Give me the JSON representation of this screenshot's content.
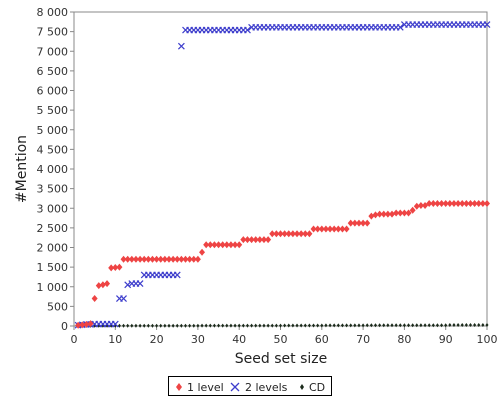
{
  "chart_data": {
    "type": "scatter",
    "xlabel": "Seed set size",
    "ylabel": "#Mention",
    "xlim": [
      0,
      100
    ],
    "ylim": [
      0,
      8000
    ],
    "x_ticks": [
      0,
      10,
      20,
      30,
      40,
      50,
      60,
      70,
      80,
      90,
      100
    ],
    "y_ticks": [
      0,
      500,
      1000,
      1500,
      2000,
      2500,
      3000,
      3500,
      4000,
      4500,
      5000,
      5500,
      6000,
      6500,
      7000,
      7500,
      8000
    ],
    "x_tick_labels": [
      "0",
      "10",
      "20",
      "30",
      "40",
      "50",
      "60",
      "70",
      "80",
      "90",
      "100"
    ],
    "y_tick_labels": [
      "0",
      "500",
      "1 000",
      "1 500",
      "2 000",
      "2 500",
      "3 000",
      "3 500",
      "4 000",
      "4 500",
      "5 000",
      "5 500",
      "6 000",
      "6 500",
      "7 000",
      "7 500",
      "8 000"
    ],
    "grid": false,
    "legend_position": "bottom",
    "series": [
      {
        "name": "1 level",
        "marker": "diamond",
        "color": "#ee4444",
        "x": [
          1,
          2,
          3,
          4,
          5,
          6,
          7,
          8,
          9,
          10,
          11,
          12,
          13,
          14,
          15,
          16,
          17,
          18,
          19,
          20,
          21,
          22,
          23,
          24,
          25,
          26,
          27,
          28,
          29,
          30,
          31,
          32,
          33,
          34,
          35,
          36,
          37,
          38,
          39,
          40,
          41,
          42,
          43,
          44,
          45,
          46,
          47,
          48,
          49,
          50,
          51,
          52,
          53,
          54,
          55,
          56,
          57,
          58,
          59,
          60,
          61,
          62,
          63,
          64,
          65,
          66,
          67,
          68,
          69,
          70,
          71,
          72,
          73,
          74,
          75,
          76,
          77,
          78,
          79,
          80,
          81,
          82,
          83,
          84,
          85,
          86,
          87,
          88,
          89,
          90,
          91,
          92,
          93,
          94,
          95,
          96,
          97,
          98,
          99,
          100
        ],
        "y": [
          20,
          30,
          40,
          60,
          700,
          1030,
          1050,
          1080,
          1480,
          1490,
          1500,
          1700,
          1700,
          1700,
          1700,
          1700,
          1700,
          1700,
          1700,
          1700,
          1700,
          1700,
          1700,
          1700,
          1700,
          1700,
          1700,
          1700,
          1700,
          1700,
          1880,
          2070,
          2070,
          2070,
          2070,
          2070,
          2070,
          2070,
          2070,
          2070,
          2200,
          2200,
          2200,
          2200,
          2200,
          2200,
          2200,
          2350,
          2350,
          2350,
          2350,
          2350,
          2350,
          2350,
          2350,
          2350,
          2350,
          2470,
          2470,
          2470,
          2470,
          2470,
          2470,
          2470,
          2470,
          2470,
          2620,
          2620,
          2620,
          2620,
          2620,
          2800,
          2830,
          2850,
          2850,
          2850,
          2850,
          2880,
          2880,
          2880,
          2880,
          2950,
          3050,
          3070,
          3070,
          3120,
          3120,
          3120,
          3120,
          3120,
          3120,
          3120,
          3120,
          3120,
          3120,
          3120,
          3120,
          3120,
          3120,
          3120
        ]
      },
      {
        "name": "2 levels",
        "marker": "x",
        "color": "#3d3dcc",
        "x": [
          1,
          2,
          3,
          4,
          5,
          6,
          7,
          8,
          9,
          10,
          11,
          12,
          13,
          14,
          15,
          16,
          17,
          18,
          19,
          20,
          21,
          22,
          23,
          24,
          25,
          26,
          27,
          28,
          29,
          30,
          31,
          32,
          33,
          34,
          35,
          36,
          37,
          38,
          39,
          40,
          41,
          42,
          43,
          44,
          45,
          46,
          47,
          48,
          49,
          50,
          51,
          52,
          53,
          54,
          55,
          56,
          57,
          58,
          59,
          60,
          61,
          62,
          63,
          64,
          65,
          66,
          67,
          68,
          69,
          70,
          71,
          72,
          73,
          74,
          75,
          76,
          77,
          78,
          79,
          80,
          81,
          82,
          83,
          84,
          85,
          86,
          87,
          88,
          89,
          90,
          91,
          92,
          93,
          94,
          95,
          96,
          97,
          98,
          99,
          100
        ],
        "y": [
          20,
          30,
          40,
          40,
          50,
          50,
          50,
          50,
          50,
          50,
          700,
          700,
          1050,
          1080,
          1080,
          1080,
          1300,
          1300,
          1300,
          1300,
          1300,
          1300,
          1300,
          1300,
          1300,
          7130,
          7540,
          7540,
          7540,
          7540,
          7540,
          7540,
          7540,
          7540,
          7540,
          7540,
          7540,
          7540,
          7540,
          7540,
          7540,
          7540,
          7610,
          7610,
          7610,
          7610,
          7610,
          7610,
          7610,
          7610,
          7610,
          7610,
          7610,
          7610,
          7610,
          7610,
          7610,
          7610,
          7610,
          7610,
          7610,
          7610,
          7610,
          7610,
          7610,
          7610,
          7610,
          7610,
          7610,
          7610,
          7610,
          7610,
          7610,
          7610,
          7610,
          7610,
          7610,
          7610,
          7610,
          7680,
          7680,
          7680,
          7680,
          7680,
          7680,
          7680,
          7680,
          7680,
          7680,
          7680,
          7680,
          7680,
          7680,
          7680,
          7680,
          7680,
          7680,
          7680,
          7680,
          7680
        ]
      },
      {
        "name": "CD",
        "marker": "dot",
        "color": "#1a2a1a",
        "x": [
          1,
          2,
          3,
          4,
          5,
          6,
          7,
          8,
          9,
          10,
          11,
          12,
          13,
          14,
          15,
          16,
          17,
          18,
          19,
          20,
          21,
          22,
          23,
          24,
          25,
          26,
          27,
          28,
          29,
          30,
          31,
          32,
          33,
          34,
          35,
          36,
          37,
          38,
          39,
          40,
          41,
          42,
          43,
          44,
          45,
          46,
          47,
          48,
          49,
          50,
          51,
          52,
          53,
          54,
          55,
          56,
          57,
          58,
          59,
          60,
          61,
          62,
          63,
          64,
          65,
          66,
          67,
          68,
          69,
          70,
          71,
          72,
          73,
          74,
          75,
          76,
          77,
          78,
          79,
          80,
          81,
          82,
          83,
          84,
          85,
          86,
          87,
          88,
          89,
          90,
          91,
          92,
          93,
          94,
          95,
          96,
          97,
          98,
          99,
          100
        ],
        "y": [
          5,
          5,
          5,
          5,
          5,
          5,
          5,
          5,
          5,
          5,
          5,
          5,
          5,
          5,
          5,
          5,
          5,
          5,
          5,
          5,
          5,
          5,
          5,
          5,
          5,
          5,
          5,
          5,
          5,
          5,
          8,
          8,
          8,
          8,
          8,
          8,
          8,
          8,
          8,
          8,
          10,
          10,
          10,
          10,
          10,
          10,
          10,
          10,
          10,
          10,
          12,
          12,
          12,
          12,
          12,
          12,
          12,
          12,
          12,
          12,
          15,
          15,
          15,
          15,
          15,
          15,
          15,
          15,
          15,
          15,
          18,
          18,
          18,
          18,
          18,
          18,
          18,
          18,
          18,
          18,
          20,
          20,
          20,
          20,
          20,
          20,
          20,
          20,
          20,
          20,
          25,
          25,
          25,
          25,
          25,
          25,
          25,
          25,
          25,
          25
        ]
      }
    ]
  }
}
